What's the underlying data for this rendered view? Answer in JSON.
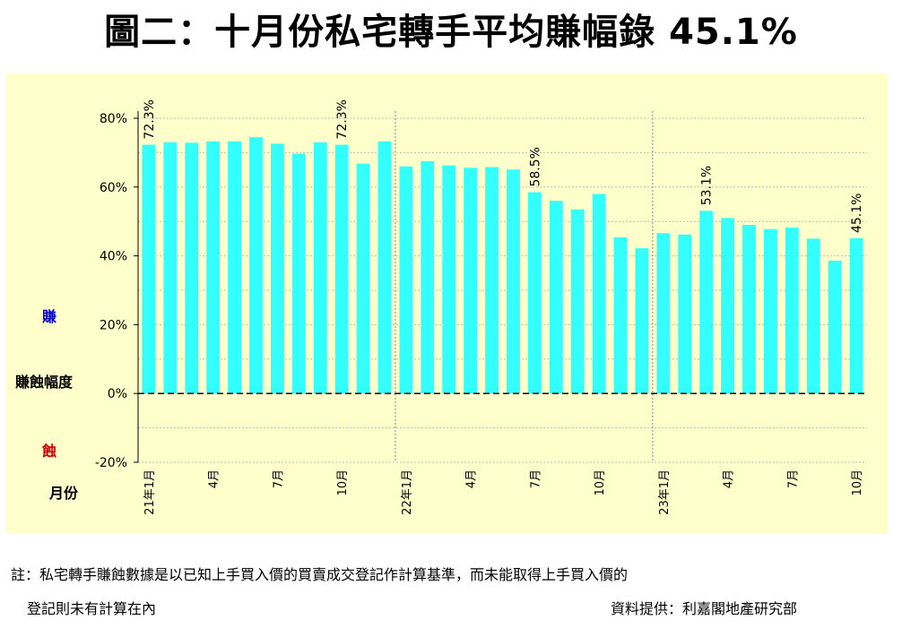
{
  "title": "圖二：十月份私宅轉手平均賺幅錄 45.1%",
  "side_labels": {
    "gain": "賺",
    "axis_title": "賺蝕幅度",
    "loss": "蝕",
    "month": "月份"
  },
  "colors": {
    "panel_background": "#ffffcc",
    "bar": "#33ffff",
    "gain_label": "#0000cc",
    "loss_label": "#cc0000"
  },
  "notes": {
    "line1": "註：私宅轉手賺蝕數據是以已知上手買入價的買賣成交登記作計算基準，而未能取得上手買入價的",
    "line2": "登記則未有計算在內",
    "source": "資料提供：利嘉閣地產研究部"
  },
  "chart_data": {
    "type": "bar",
    "title": "",
    "xlabel": "月份",
    "ylabel": "賺蝕幅度",
    "ylim": [
      -20,
      80
    ],
    "ytick_values": [
      -20,
      0,
      20,
      40,
      60,
      80
    ],
    "ytick_labels": [
      "-20%",
      "0%",
      "20%",
      "40%",
      "60%",
      "80%"
    ],
    "grid": true,
    "zero_line": "dashed",
    "year_dividers": [
      "22年1月",
      "23年1月"
    ],
    "categories": [
      "21年1月",
      "21年2月",
      "21年3月",
      "21年4月",
      "21年5月",
      "21年6月",
      "21年7月",
      "21年8月",
      "21年9月",
      "21年10月",
      "21年11月",
      "21年12月",
      "22年1月",
      "22年2月",
      "22年3月",
      "22年4月",
      "22年5月",
      "22年6月",
      "22年7月",
      "22年8月",
      "22年9月",
      "22年10月",
      "22年11月",
      "22年12月",
      "23年1月",
      "23年2月",
      "23年3月",
      "23年4月",
      "23年5月",
      "23年6月",
      "23年7月",
      "23年8月",
      "23年9月",
      "23年10月"
    ],
    "tick_labels": {
      "0": "21年1月",
      "3": "4月",
      "6": "7月",
      "9": "10月",
      "12": "22年1月",
      "15": "4月",
      "18": "7月",
      "21": "10月",
      "24": "23年1月",
      "27": "4月",
      "30": "7月",
      "33": "10月"
    },
    "values": [
      72.3,
      73.0,
      72.9,
      73.3,
      73.3,
      74.5,
      72.6,
      69.7,
      73.0,
      72.3,
      66.8,
      73.3,
      66.0,
      67.5,
      66.3,
      65.6,
      65.8,
      65.1,
      58.5,
      56.0,
      53.5,
      58.0,
      45.4,
      42.2,
      46.6,
      46.2,
      53.1,
      51.0,
      49.0,
      47.8,
      48.2,
      45.0,
      38.6,
      45.1
    ],
    "data_labels": {
      "0": "72.3%",
      "9": "72.3%",
      "18": "58.5%",
      "26": "53.1%",
      "33": "45.1%"
    }
  }
}
